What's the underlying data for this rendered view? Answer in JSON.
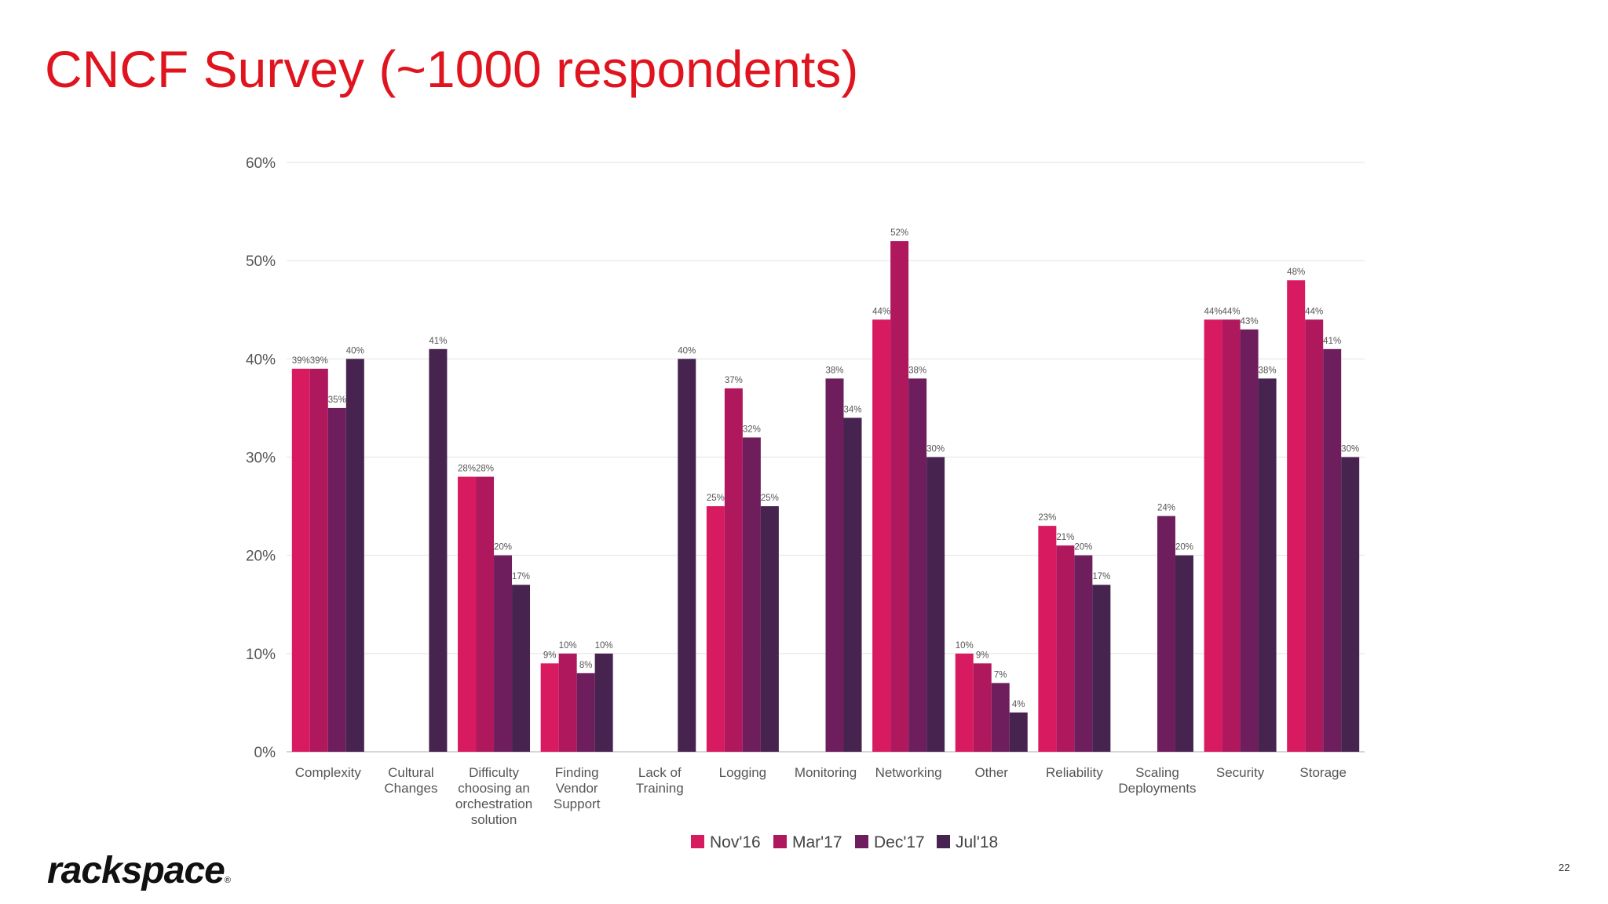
{
  "slide": {
    "title": "CNCF Survey (~1000 respondents)",
    "logo": "rackspace",
    "logo_mark": "®",
    "page_number": "22"
  },
  "chart_data": {
    "type": "bar",
    "title": "",
    "xlabel": "",
    "ylabel": "",
    "ylim": [
      0,
      60
    ],
    "yticks": [
      "0%",
      "10%",
      "20%",
      "30%",
      "40%",
      "50%",
      "60%"
    ],
    "grid": true,
    "legend_position": "bottom",
    "categories": [
      [
        "Complexity"
      ],
      [
        "Cultural",
        "Changes"
      ],
      [
        "Difficulty",
        "choosing an",
        "orchestration",
        "solution"
      ],
      [
        "Finding",
        "Vendor",
        "Support"
      ],
      [
        "Lack of",
        "Training"
      ],
      [
        "Logging"
      ],
      [
        "Monitoring"
      ],
      [
        "Networking"
      ],
      [
        "Other"
      ],
      [
        "Reliability"
      ],
      [
        "Scaling",
        "Deployments"
      ],
      [
        "Security"
      ],
      [
        "Storage"
      ]
    ],
    "series": [
      {
        "name": "Nov'16",
        "color": "#d81b60",
        "values": [
          39,
          null,
          28,
          9,
          null,
          25,
          null,
          44,
          10,
          23,
          null,
          44,
          48
        ]
      },
      {
        "name": "Mar'17",
        "color": "#b0185e",
        "values": [
          39,
          null,
          28,
          10,
          null,
          37,
          null,
          52,
          9,
          21,
          null,
          44,
          44
        ]
      },
      {
        "name": "Dec'17",
        "color": "#6e1e5c",
        "values": [
          35,
          null,
          20,
          8,
          null,
          32,
          38,
          38,
          7,
          20,
          24,
          43,
          41
        ]
      },
      {
        "name": "Jul'18",
        "color": "#46244f",
        "values": [
          40,
          41,
          17,
          10,
          40,
          25,
          34,
          30,
          4,
          17,
          20,
          38,
          30
        ]
      }
    ],
    "label_suffix": "%"
  }
}
